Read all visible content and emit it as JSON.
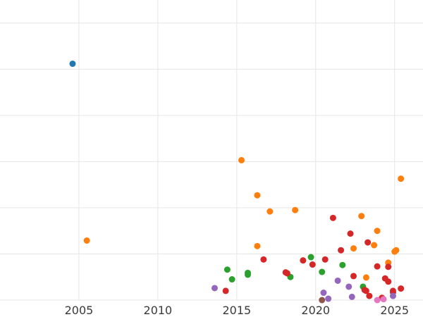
{
  "chart_data": {
    "type": "scatter",
    "title": "",
    "xlabel": "",
    "ylabel": "",
    "xlim": [
      2000,
      2026.8
    ],
    "ylim": [
      0,
      6.5
    ],
    "x_ticks": [
      2005,
      2010,
      2015,
      2020,
      2025
    ],
    "y_gridlines": [
      0,
      1,
      2,
      3,
      4,
      5,
      6
    ],
    "grid": true,
    "legend": "none",
    "series": [
      {
        "color": "#1f77b4",
        "points": [
          [
            2004.6,
            5.12
          ]
        ]
      },
      {
        "color": "#ff7f0e",
        "points": [
          [
            2005.5,
            1.29
          ],
          [
            2015.3,
            3.03
          ],
          [
            2016.3,
            2.27
          ],
          [
            2016.3,
            1.17
          ],
          [
            2017.1,
            1.92
          ],
          [
            2018.7,
            1.95
          ],
          [
            2022.4,
            1.12
          ],
          [
            2022.9,
            1.82
          ],
          [
            2023.2,
            0.49
          ],
          [
            2023.7,
            1.19
          ],
          [
            2023.9,
            1.5
          ],
          [
            2024.6,
            0.81
          ],
          [
            2025.0,
            1.05
          ],
          [
            2025.1,
            1.08
          ],
          [
            2025.4,
            2.63
          ]
        ]
      },
      {
        "color": "#2ca02c",
        "points": [
          [
            2014.4,
            0.66
          ],
          [
            2014.7,
            0.45
          ],
          [
            2015.7,
            0.59
          ],
          [
            2015.7,
            0.55
          ],
          [
            2018.4,
            0.5
          ],
          [
            2019.7,
            0.93
          ],
          [
            2020.4,
            0.61
          ],
          [
            2021.7,
            0.76
          ],
          [
            2023.0,
            0.29
          ]
        ]
      },
      {
        "color": "#d62728",
        "points": [
          [
            2014.3,
            0.2
          ],
          [
            2016.7,
            0.88
          ],
          [
            2018.1,
            0.6
          ],
          [
            2018.2,
            0.58
          ],
          [
            2019.2,
            0.86
          ],
          [
            2019.8,
            0.77
          ],
          [
            2020.6,
            0.88
          ],
          [
            2021.1,
            1.78
          ],
          [
            2021.6,
            1.08
          ],
          [
            2022.2,
            1.44
          ],
          [
            2022.4,
            0.52
          ],
          [
            2023.1,
            0.22
          ],
          [
            2023.2,
            0.2
          ],
          [
            2023.3,
            1.25
          ],
          [
            2023.4,
            0.09
          ],
          [
            2023.9,
            0.73
          ],
          [
            2024.2,
            0.05
          ],
          [
            2024.4,
            0.47
          ],
          [
            2024.6,
            0.72
          ],
          [
            2024.6,
            0.4
          ],
          [
            2024.9,
            0.2
          ],
          [
            2024.9,
            0.17
          ],
          [
            2025.4,
            0.25
          ]
        ]
      },
      {
        "color": "#9467bd",
        "points": [
          [
            2013.6,
            0.26
          ],
          [
            2020.5,
            0.16
          ],
          [
            2020.8,
            0.03
          ],
          [
            2021.4,
            0.42
          ],
          [
            2022.1,
            0.29
          ],
          [
            2022.3,
            0.07
          ],
          [
            2024.9,
            0.09
          ]
        ]
      },
      {
        "color": "#8c564b",
        "points": [
          [
            2020.4,
            0.0
          ]
        ]
      },
      {
        "color": "#e377c2",
        "points": [
          [
            2023.9,
            0.0
          ],
          [
            2024.3,
            0.02
          ]
        ]
      }
    ]
  }
}
